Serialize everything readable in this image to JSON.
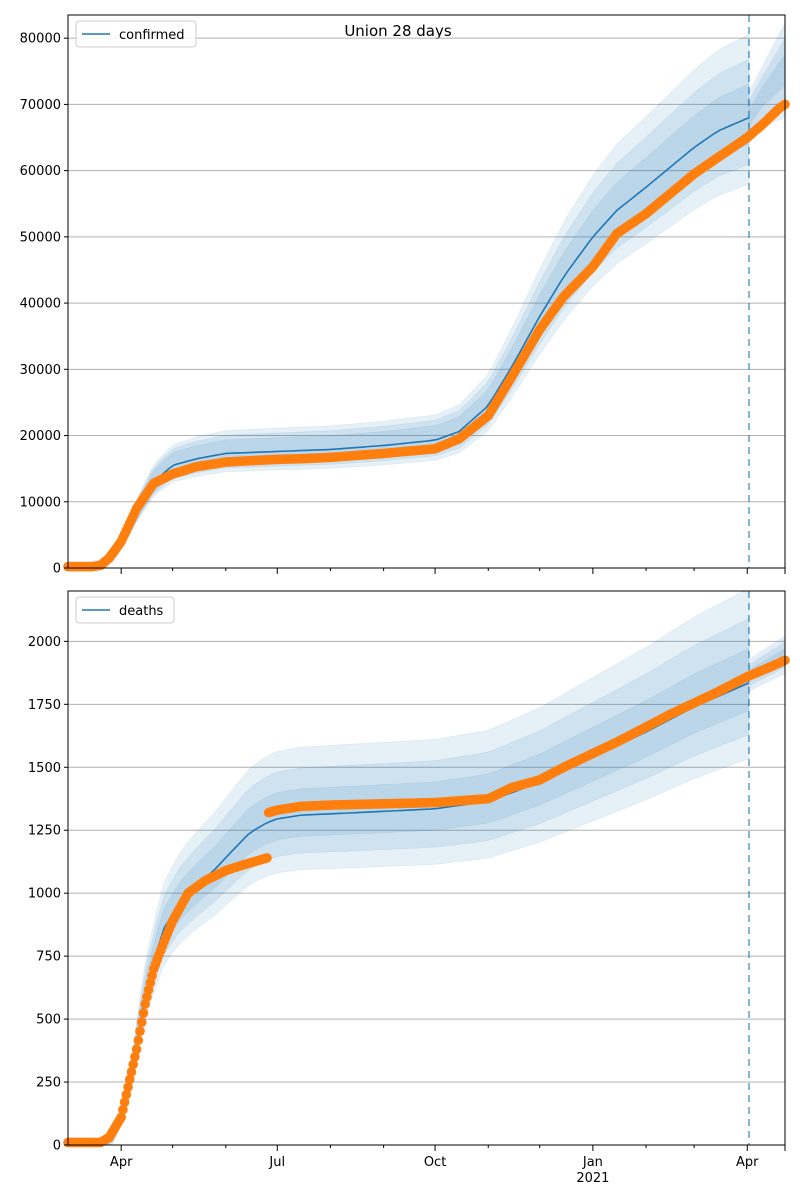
{
  "figure_title": "Union 28 days",
  "colors": {
    "model": "#1f77b4",
    "observed": "#ff7f0e",
    "band": "#1f77b4",
    "grid": "#b0b0b0",
    "forecast_line": "#1f77b4"
  },
  "x_axis": {
    "start_date": "2020-03-01",
    "end_date": "2021-04-23",
    "forecast_date": "2021-04-02",
    "major_ticks": [
      {
        "date": "2020-04-01",
        "label": "Apr",
        "sublabel": ""
      },
      {
        "date": "2020-07-01",
        "label": "Jul",
        "sublabel": ""
      },
      {
        "date": "2020-10-01",
        "label": "Oct",
        "sublabel": ""
      },
      {
        "date": "2021-01-01",
        "label": "Jan",
        "sublabel": "2021"
      },
      {
        "date": "2021-04-01",
        "label": "Apr",
        "sublabel": ""
      }
    ],
    "minor_ticks": [
      "2020-05-01",
      "2020-06-01",
      "2020-08-01",
      "2020-09-01",
      "2020-11-01",
      "2020-12-01",
      "2021-02-01",
      "2021-03-01"
    ]
  },
  "chart_data": [
    {
      "type": "line",
      "legend": "confirmed",
      "legend_position": "top-left",
      "grid": true,
      "ylim": [
        0,
        83500
      ],
      "yticks": [
        0,
        10000,
        20000,
        30000,
        40000,
        50000,
        60000,
        70000,
        80000
      ],
      "model_series": {
        "name": "confirmed",
        "x": [
          "2020-03-01",
          "2020-03-15",
          "2020-03-20",
          "2020-03-25",
          "2020-04-01",
          "2020-04-10",
          "2020-04-20",
          "2020-05-01",
          "2020-05-15",
          "2020-06-01",
          "2020-07-01",
          "2020-08-01",
          "2020-09-01",
          "2020-10-01",
          "2020-10-15",
          "2020-11-01",
          "2020-11-15",
          "2020-12-01",
          "2020-12-15",
          "2021-01-01",
          "2021-01-15",
          "2021-02-01",
          "2021-02-15",
          "2021-03-01",
          "2021-03-15",
          "2021-04-02"
        ],
        "y": [
          0,
          0,
          300,
          1200,
          3500,
          8500,
          13000,
          15500,
          16500,
          17300,
          17600,
          17900,
          18500,
          19300,
          20600,
          24500,
          30500,
          38000,
          44000,
          50000,
          54000,
          57500,
          60500,
          63500,
          66000,
          68000
        ],
        "band_fraction": [
          0.06,
          0.12,
          0.18
        ]
      },
      "observed_series": {
        "name": "observed",
        "x": [
          "2020-03-01",
          "2020-03-15",
          "2020-03-20",
          "2020-03-25",
          "2020-04-01",
          "2020-04-10",
          "2020-04-20",
          "2020-05-01",
          "2020-05-15",
          "2020-06-01",
          "2020-06-15",
          "2020-07-01",
          "2020-07-15",
          "2020-08-01",
          "2020-09-01",
          "2020-10-01",
          "2020-10-15",
          "2020-11-01",
          "2020-11-15",
          "2020-12-01",
          "2020-12-15",
          "2021-01-01",
          "2021-01-15",
          "2021-02-01",
          "2021-02-15",
          "2021-03-01",
          "2021-03-15",
          "2021-04-01",
          "2021-04-10",
          "2021-04-20",
          "2021-04-23"
        ],
        "y": [
          200,
          200,
          400,
          1500,
          4000,
          9000,
          12800,
          14200,
          15300,
          16000,
          16200,
          16400,
          16500,
          16700,
          17300,
          18000,
          19500,
          23000,
          29000,
          36000,
          41000,
          45500,
          50500,
          53500,
          56500,
          59500,
          62000,
          65000,
          67000,
          69500,
          70000
        ]
      },
      "forecast_upper": {
        "x": [
          "2021-04-02",
          "2021-04-10",
          "2021-04-23"
        ],
        "y": [
          72000,
          76000,
          82500
        ]
      },
      "forecast_lower": {
        "x": [
          "2021-04-02",
          "2021-04-10",
          "2021-04-23"
        ],
        "y": [
          64000,
          66500,
          68000
        ]
      }
    },
    {
      "type": "line",
      "legend": "deaths",
      "legend_position": "top-left",
      "grid": true,
      "ylim": [
        0,
        2200
      ],
      "yticks": [
        0,
        250,
        500,
        750,
        1000,
        1250,
        1500,
        1750,
        2000
      ],
      "model_series": {
        "name": "deaths",
        "x": [
          "2020-03-01",
          "2020-03-20",
          "2020-03-28",
          "2020-04-05",
          "2020-04-15",
          "2020-04-25",
          "2020-05-05",
          "2020-05-15",
          "2020-05-25",
          "2020-06-05",
          "2020-06-15",
          "2020-06-25",
          "2020-07-01",
          "2020-07-15",
          "2020-08-01",
          "2020-09-01",
          "2020-10-01",
          "2020-11-01",
          "2020-12-01",
          "2021-01-01",
          "2021-02-01",
          "2021-03-01",
          "2021-04-02"
        ],
        "y": [
          0,
          0,
          30,
          200,
          600,
          850,
          960,
          1030,
          1090,
          1170,
          1240,
          1280,
          1295,
          1310,
          1315,
          1325,
          1335,
          1365,
          1440,
          1540,
          1640,
          1740,
          1835
        ],
        "band_fraction": [
          0.06,
          0.13,
          0.2
        ]
      },
      "observed_series": {
        "name": "observed",
        "x": [
          "2020-03-01",
          "2020-03-20",
          "2020-03-25",
          "2020-04-01",
          "2020-04-05",
          "2020-04-10",
          "2020-04-15",
          "2020-04-20",
          "2020-04-25",
          "2020-05-01",
          "2020-05-10",
          "2020-05-20",
          "2020-06-01",
          "2020-06-10",
          "2020-06-20",
          "2020-06-25",
          "2020-06-26",
          "2020-07-01",
          "2020-07-15",
          "2020-08-01",
          "2020-09-01",
          "2020-10-01",
          "2020-11-01",
          "2020-11-15",
          "2020-12-01",
          "2020-12-15",
          "2021-01-01",
          "2021-01-15",
          "2021-02-01",
          "2021-02-15",
          "2021-03-01",
          "2021-03-15",
          "2021-04-01",
          "2021-04-15",
          "2021-04-23"
        ],
        "y": [
          10,
          10,
          30,
          110,
          230,
          380,
          560,
          700,
          790,
          890,
          1000,
          1050,
          1090,
          1110,
          1130,
          1140,
          1320,
          1330,
          1345,
          1350,
          1355,
          1360,
          1375,
          1420,
          1450,
          1500,
          1555,
          1600,
          1660,
          1710,
          1755,
          1800,
          1860,
          1900,
          1925
        ]
      },
      "forecast_upper": {
        "x": [
          "2021-04-02",
          "2021-04-23"
        ],
        "y": [
          1930,
          2025
        ]
      },
      "forecast_lower": {
        "x": [
          "2021-04-02",
          "2021-04-23"
        ],
        "y": [
          1800,
          1870
        ]
      }
    }
  ]
}
